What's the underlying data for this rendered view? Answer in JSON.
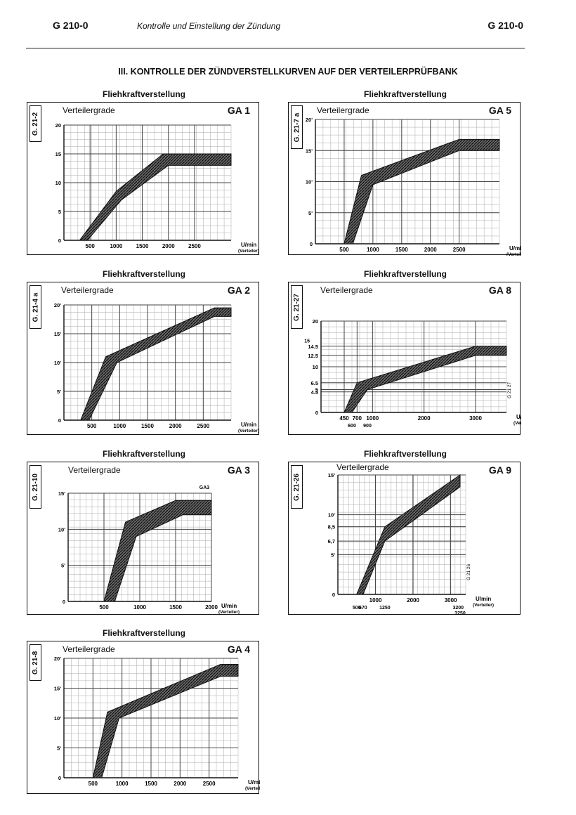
{
  "header": {
    "left": "G 210-0",
    "center": "Kontrolle und Einstellung der Zündung",
    "right": "G 210-0"
  },
  "section_title": "III. KONTROLLE DER ZÜNDVERSTELLKURVEN AUF DER VERTEILERPRÜFBANK",
  "chart_data": [
    {
      "type": "area",
      "name": "GA 1",
      "panel_title": "Fliehkraftverstellung",
      "code": "G. 21-2",
      "ylabel": "Verteilergrade",
      "xlabel": "U/min",
      "xlabel2": "(Verteiler)",
      "xlim": [
        0,
        3200
      ],
      "ylim": [
        0,
        20
      ],
      "xticks": [
        500,
        1000,
        1500,
        2000,
        2500
      ],
      "xtick_labels": [
        "500",
        "1000",
        "1500",
        "2000",
        "2500"
      ],
      "yticks": [
        0,
        5,
        10,
        15,
        20
      ],
      "ytick_labels": [
        "0",
        "5",
        "10",
        "15",
        "20"
      ],
      "upper": [
        [
          300,
          0
        ],
        [
          1000,
          8.5
        ],
        [
          1900,
          15
        ],
        [
          3200,
          15
        ]
      ],
      "lower": [
        [
          450,
          0
        ],
        [
          1100,
          7
        ],
        [
          2000,
          13
        ],
        [
          3200,
          13
        ]
      ]
    },
    {
      "type": "area",
      "name": "GA 5",
      "panel_title": "Fliehkraftverstellung",
      "code": "G. 21-7 a",
      "ylabel": "Verteilergrade",
      "xlabel": "U/min",
      "xlabel2": "(Verteiler)",
      "xlim": [
        0,
        3200
      ],
      "ylim": [
        0,
        20
      ],
      "xticks": [
        500,
        1000,
        1500,
        2000,
        2500
      ],
      "xtick_labels": [
        "500",
        "1000",
        "1500",
        "2000",
        "2500"
      ],
      "yticks": [
        0,
        5,
        10,
        15,
        20
      ],
      "ytick_labels": [
        "0",
        "5'",
        "10'",
        "15'",
        "20'"
      ],
      "upper": [
        [
          500,
          0
        ],
        [
          800,
          11
        ],
        [
          2500,
          16.8
        ],
        [
          3200,
          16.8
        ]
      ],
      "lower": [
        [
          650,
          0
        ],
        [
          1000,
          9.5
        ],
        [
          2500,
          15
        ],
        [
          3200,
          15
        ]
      ]
    },
    {
      "type": "area",
      "name": "GA 2",
      "panel_title": "Fliehkraftverstellung",
      "code": "G. 21-4 a",
      "ylabel": "Verteilergrade",
      "xlabel": "U/min",
      "xlabel2": "(Verteiler)",
      "xlim": [
        0,
        3000
      ],
      "ylim": [
        0,
        20
      ],
      "xticks": [
        500,
        1000,
        1500,
        2000,
        2500
      ],
      "xtick_labels": [
        "500",
        "1000",
        "1500",
        "2000",
        "2500"
      ],
      "yticks": [
        0,
        5,
        10,
        15,
        20
      ],
      "ytick_labels": [
        "0",
        "5'",
        "10'",
        "15'",
        "20'"
      ],
      "upper": [
        [
          300,
          0
        ],
        [
          750,
          11
        ],
        [
          2700,
          19.5
        ],
        [
          3000,
          19.5
        ]
      ],
      "lower": [
        [
          450,
          0
        ],
        [
          950,
          10
        ],
        [
          2700,
          18
        ],
        [
          3000,
          18
        ]
      ]
    },
    {
      "type": "area",
      "name": "GA 8",
      "panel_title": "Fliehkraftverstellung",
      "code": "G. 21-27",
      "ylabel": "Verteilergrade",
      "xlabel": "U/min",
      "xlabel2": "(Verteiler)",
      "side_code": "G 21 27",
      "xlim": [
        0,
        3600
      ],
      "ylim": [
        0,
        20
      ],
      "xticks": [
        450,
        700,
        1000,
        2000,
        3000
      ],
      "xtick_labels": [
        "450",
        "700",
        "1000",
        "2000",
        "3000"
      ],
      "xticks2": [
        600,
        900
      ],
      "xtick2_labels": [
        "600",
        "900"
      ],
      "yticks": [
        0,
        4.5,
        5,
        6.5,
        10,
        12.5,
        14.5,
        20
      ],
      "ytick_labels": [
        "0",
        "4.5",
        "5",
        "6.5",
        "10",
        "12.5",
        "14.5",
        "20"
      ],
      "left_labels": [
        "15"
      ],
      "upper": [
        [
          450,
          0
        ],
        [
          700,
          6.5
        ],
        [
          3000,
          14.5
        ],
        [
          3600,
          14.5
        ]
      ],
      "lower": [
        [
          600,
          0
        ],
        [
          900,
          5
        ],
        [
          3000,
          12.5
        ],
        [
          3600,
          12.5
        ]
      ]
    },
    {
      "type": "area",
      "name": "GA 3",
      "panel_title": "Fliehkraftverstellung",
      "code": "G. 21-10",
      "inner_label": "GA3",
      "ylabel": "Verteilergrade",
      "xlabel": "U/min",
      "xlabel2": "(Verteiler)",
      "xlim": [
        0,
        2000
      ],
      "ylim": [
        0,
        15
      ],
      "xticks": [
        500,
        1000,
        1500,
        2000
      ],
      "xtick_labels": [
        "500",
        "1000",
        "1500",
        "2000"
      ],
      "yticks": [
        0,
        5,
        10,
        15
      ],
      "ytick_labels": [
        "0'",
        "5'",
        "10'",
        "15'"
      ],
      "upper": [
        [
          500,
          0
        ],
        [
          800,
          11
        ],
        [
          1500,
          14
        ],
        [
          2000,
          14
        ]
      ],
      "lower": [
        [
          650,
          0
        ],
        [
          950,
          9
        ],
        [
          1600,
          12
        ],
        [
          2000,
          12
        ]
      ]
    },
    {
      "type": "area",
      "name": "GA 9",
      "panel_title": "Fliehkraftverstellung",
      "code": "G. 21-26",
      "side_code": "G 21 26",
      "ylabel": "Verteilergrade",
      "xlabel": "U/min",
      "xlabel2": "(Verteiler)",
      "xlim": [
        0,
        3400
      ],
      "ylim": [
        0,
        15
      ],
      "xticks": [
        1000,
        2000,
        3000
      ],
      "xtick_labels": [
        "1000",
        "2000",
        "3000"
      ],
      "xticks2": [
        500,
        670,
        1250,
        3200
      ],
      "xtick2_labels": [
        "500",
        "670",
        "1250",
        "3200"
      ],
      "bottom_extra": "3250",
      "yticks": [
        0,
        5,
        6.7,
        8.5,
        10,
        15
      ],
      "ytick_labels": [
        "0'",
        "5'",
        "6,7",
        "8,5",
        "10'",
        "15'"
      ],
      "upper": [
        [
          500,
          0
        ],
        [
          1250,
          8.5
        ],
        [
          3250,
          15
        ]
      ],
      "lower": [
        [
          670,
          0
        ],
        [
          1250,
          6.7
        ],
        [
          3250,
          13.5
        ]
      ]
    },
    {
      "type": "area",
      "name": "GA 4",
      "panel_title": "Fliehkraftverstellung",
      "code": "G. 21-8",
      "ylabel": "Verteilergrade",
      "xlabel": "U/min",
      "xlabel2": "(Verteiler)",
      "xlim": [
        0,
        3000
      ],
      "ylim": [
        0,
        20
      ],
      "xticks": [
        500,
        1000,
        1500,
        2000,
        2500
      ],
      "xtick_labels": [
        "500",
        "1000",
        "1500",
        "2000",
        "2500"
      ],
      "yticks": [
        0,
        5,
        10,
        15,
        20
      ],
      "ytick_labels": [
        "0",
        "5'",
        "10'",
        "15'",
        "20'"
      ],
      "upper": [
        [
          500,
          0
        ],
        [
          750,
          11
        ],
        [
          2700,
          19
        ],
        [
          3000,
          19
        ]
      ],
      "lower": [
        [
          650,
          0
        ],
        [
          950,
          10
        ],
        [
          2700,
          17
        ],
        [
          3000,
          17
        ]
      ]
    }
  ]
}
